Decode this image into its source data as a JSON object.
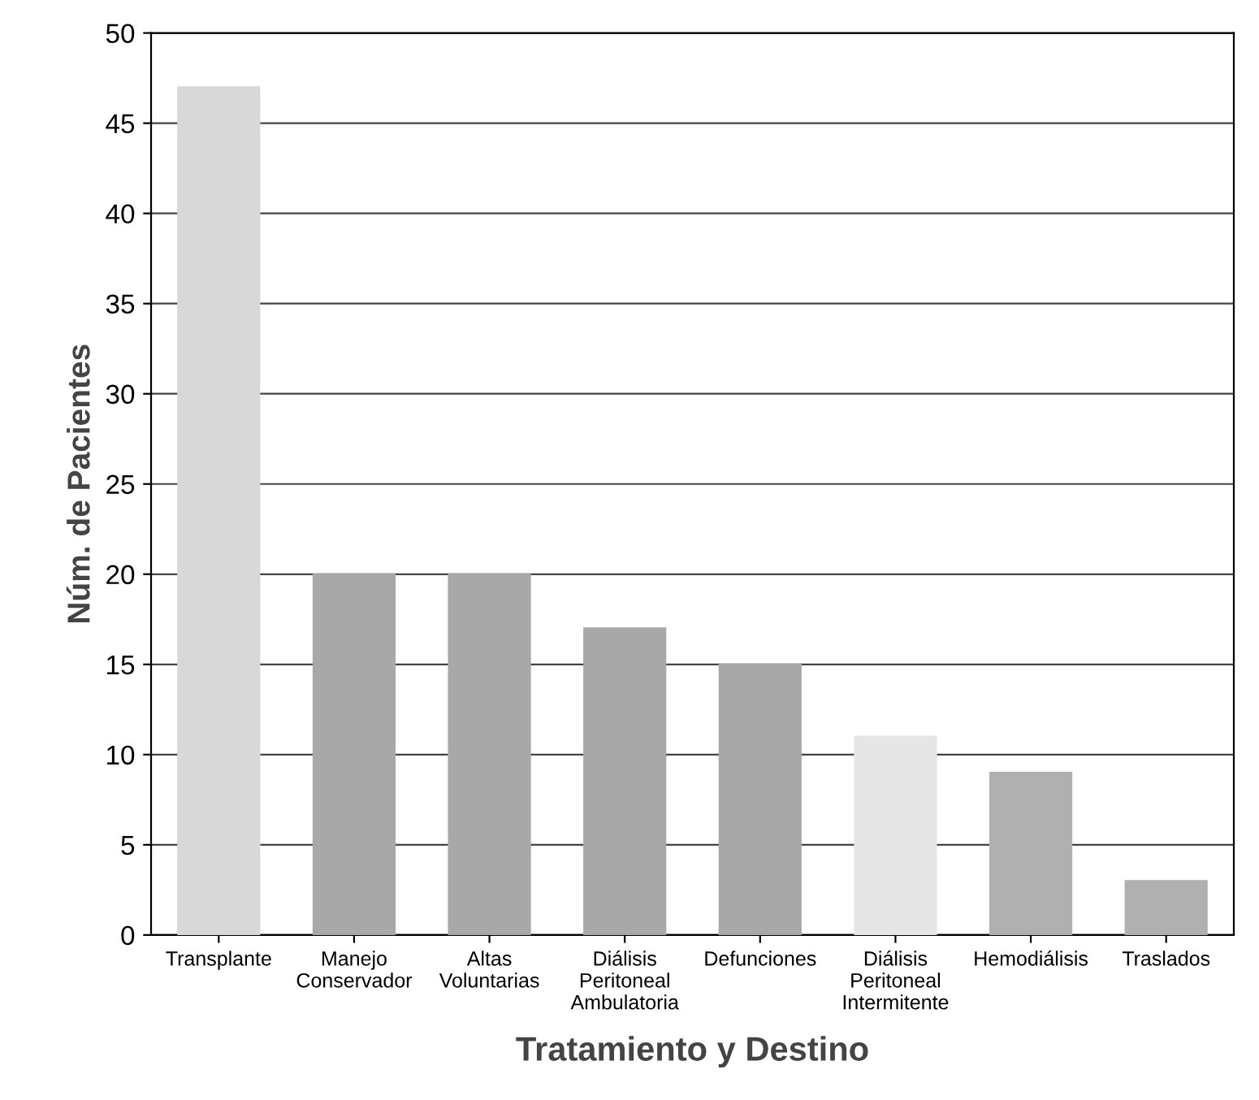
{
  "chart_data": {
    "type": "bar",
    "xlabel": "Tratamiento y Destino",
    "ylabel": "Núm. de Pacientes",
    "categories": [
      "Transplante",
      "Manejo\nConservador",
      "Altas\nVoluntarias",
      "Diálisis\nPeritoneal\nAmbulatoria",
      "Defunciones",
      "Diálisis\nPeritoneal\nIntermitente",
      "Hemodiálisis",
      "Traslados"
    ],
    "values": [
      47,
      20,
      20,
      17,
      15,
      11,
      9,
      3
    ],
    "colors": [
      "#d8d8d8",
      "#a8a8a8",
      "#a8a8a8",
      "#a8a8a8",
      "#a8a8a8",
      "#e6e6e6",
      "#b0b0b0",
      "#b0b0b0"
    ],
    "ylim": [
      0,
      50
    ],
    "yticks": [
      0,
      5,
      10,
      15,
      20,
      25,
      30,
      35,
      40,
      45,
      50
    ],
    "grid": "y"
  }
}
